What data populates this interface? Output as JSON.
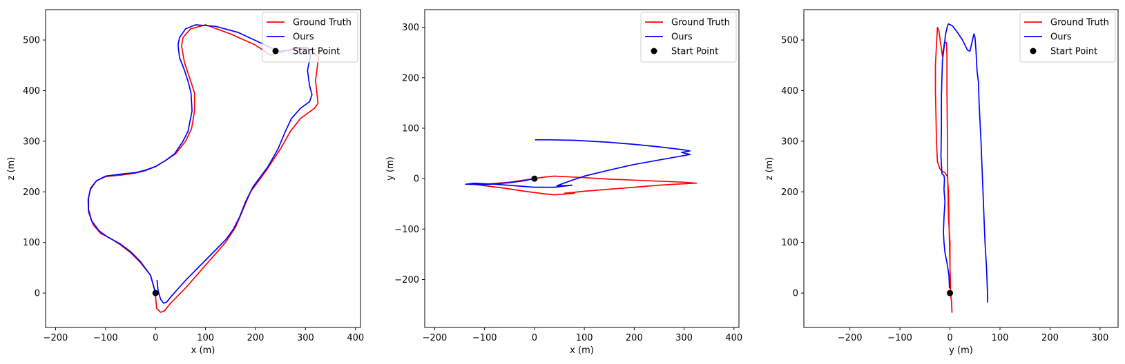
{
  "chart_data": [
    {
      "type": "line",
      "xlabel": "x (m)",
      "ylabel": "z (m)",
      "xlim": [
        -220,
        410
      ],
      "ylim": [
        -68,
        560
      ],
      "xticks": [
        -200,
        -100,
        0,
        100,
        200,
        300,
        400
      ],
      "yticks": [
        0,
        100,
        200,
        300,
        400,
        500
      ],
      "grid": false,
      "legend": {
        "placement": "top-right",
        "entries": [
          "Ground Truth",
          "Ours",
          "Start Point"
        ]
      },
      "series": [
        {
          "name": "Ground Truth",
          "color": "#ff0000",
          "points": [
            [
              0,
              -5
            ],
            [
              2,
              -30
            ],
            [
              10,
              -38
            ],
            [
              18,
              -35
            ],
            [
              30,
              -20
            ],
            [
              60,
              10
            ],
            [
              100,
              55
            ],
            [
              140,
              100
            ],
            [
              160,
              130
            ],
            [
              175,
              165
            ],
            [
              190,
              200
            ],
            [
              220,
              240
            ],
            [
              250,
              285
            ],
            [
              270,
              320
            ],
            [
              290,
              345
            ],
            [
              318,
              365
            ],
            [
              325,
              375
            ],
            [
              320,
              420
            ],
            [
              326,
              465
            ],
            [
              310,
              482
            ],
            [
              280,
              485
            ],
            [
              260,
              478
            ],
            [
              230,
              470
            ],
            [
              200,
              490
            ],
            [
              150,
              512
            ],
            [
              100,
              530
            ],
            [
              70,
              522
            ],
            [
              55,
              505
            ],
            [
              52,
              488
            ],
            [
              58,
              455
            ],
            [
              70,
              420
            ],
            [
              78,
              395
            ],
            [
              78,
              360
            ],
            [
              72,
              325
            ],
            [
              60,
              300
            ],
            [
              40,
              275
            ],
            [
              20,
              262
            ],
            [
              0,
              250
            ],
            [
              -20,
              242
            ],
            [
              -40,
              237
            ],
            [
              -70,
              233
            ],
            [
              -100,
              230
            ],
            [
              -118,
              222
            ],
            [
              -130,
              205
            ],
            [
              -135,
              185
            ],
            [
              -134,
              160
            ],
            [
              -125,
              135
            ],
            [
              -110,
              118
            ],
            [
              -90,
              108
            ],
            [
              -70,
              95
            ],
            [
              -50,
              80
            ],
            [
              -30,
              60
            ],
            [
              -10,
              35
            ],
            [
              0,
              0
            ]
          ]
        },
        {
          "name": "Ours",
          "color": "#0000ff",
          "points": [
            [
              3,
              25
            ],
            [
              5,
              5
            ],
            [
              10,
              -12
            ],
            [
              16,
              -20
            ],
            [
              22,
              -18
            ],
            [
              30,
              -8
            ],
            [
              60,
              25
            ],
            [
              100,
              65
            ],
            [
              140,
              105
            ],
            [
              155,
              125
            ],
            [
              168,
              150
            ],
            [
              180,
              180
            ],
            [
              195,
              210
            ],
            [
              225,
              250
            ],
            [
              245,
              285
            ],
            [
              260,
              320
            ],
            [
              272,
              345
            ],
            [
              290,
              365
            ],
            [
              308,
              378
            ],
            [
              313,
              392
            ],
            [
              308,
              410
            ],
            [
              304,
              440
            ],
            [
              310,
              470
            ],
            [
              305,
              485
            ],
            [
              288,
              485
            ],
            [
              270,
              480
            ],
            [
              245,
              478
            ],
            [
              215,
              492
            ],
            [
              165,
              515
            ],
            [
              120,
              527
            ],
            [
              80,
              530
            ],
            [
              60,
              522
            ],
            [
              48,
              505
            ],
            [
              45,
              490
            ],
            [
              48,
              465
            ],
            [
              58,
              440
            ],
            [
              66,
              415
            ],
            [
              71,
              395
            ],
            [
              73,
              360
            ],
            [
              65,
              320
            ],
            [
              55,
              300
            ],
            [
              38,
              275
            ],
            [
              20,
              262
            ],
            [
              0,
              250
            ],
            [
              -20,
              243
            ],
            [
              -40,
              238
            ],
            [
              -70,
              235
            ],
            [
              -100,
              231
            ],
            [
              -118,
              222
            ],
            [
              -130,
              207
            ],
            [
              -134,
              188
            ],
            [
              -134,
              165
            ],
            [
              -128,
              143
            ],
            [
              -113,
              123
            ],
            [
              -95,
              110
            ],
            [
              -72,
              98
            ],
            [
              -50,
              82
            ],
            [
              -30,
              62
            ],
            [
              -10,
              35
            ],
            [
              0,
              0
            ]
          ]
        },
        {
          "name": "Start Point",
          "color": "#000000",
          "marker": "dot",
          "points": [
            [
              0,
              0
            ]
          ]
        }
      ]
    },
    {
      "type": "line",
      "xlabel": "x (m)",
      "ylabel": "y (m)",
      "xlim": [
        -220,
        410
      ],
      "ylim": [
        -295,
        335
      ],
      "xticks": [
        -200,
        -100,
        0,
        100,
        200,
        300,
        400
      ],
      "yticks": [
        -200,
        -100,
        0,
        100,
        200,
        300
      ],
      "grid": false,
      "legend": {
        "placement": "top-right",
        "entries": [
          "Ground Truth",
          "Ours",
          "Start Point"
        ]
      },
      "series": [
        {
          "name": "Ground Truth",
          "color": "#ff0000",
          "points": [
            [
              0,
              0
            ],
            [
              20,
              3
            ],
            [
              40,
              5
            ],
            [
              60,
              4
            ],
            [
              100,
              2
            ],
            [
              150,
              -1
            ],
            [
              200,
              -3
            ],
            [
              250,
              -5
            ],
            [
              300,
              -7
            ],
            [
              325,
              -9
            ],
            [
              300,
              -10
            ],
            [
              250,
              -13
            ],
            [
              200,
              -17
            ],
            [
              150,
              -21
            ],
            [
              100,
              -25
            ],
            [
              60,
              -29
            ],
            [
              80,
              -29
            ],
            [
              40,
              -32
            ],
            [
              20,
              -30
            ],
            [
              -20,
              -25
            ],
            [
              -60,
              -19
            ],
            [
              -100,
              -14
            ],
            [
              -130,
              -10
            ],
            [
              -100,
              -11
            ],
            [
              -50,
              -7
            ],
            [
              0,
              0
            ]
          ]
        },
        {
          "name": "Ours",
          "color": "#0000ff",
          "points": [
            [
              2,
              77
            ],
            [
              30,
              77
            ],
            [
              80,
              76
            ],
            [
              150,
              72
            ],
            [
              200,
              68
            ],
            [
              250,
              63
            ],
            [
              300,
              57
            ],
            [
              312,
              55
            ],
            [
              295,
              52
            ],
            [
              312,
              48
            ],
            [
              290,
              44
            ],
            [
              250,
              37
            ],
            [
              200,
              28
            ],
            [
              150,
              17
            ],
            [
              100,
              5
            ],
            [
              70,
              -5
            ],
            [
              45,
              -14
            ],
            [
              60,
              -14
            ],
            [
              75,
              -13
            ],
            [
              40,
              -17
            ],
            [
              0,
              -17
            ],
            [
              -40,
              -14
            ],
            [
              -80,
              -11
            ],
            [
              -120,
              -9
            ],
            [
              -138,
              -11
            ],
            [
              -100,
              -12
            ],
            [
              -50,
              -8
            ],
            [
              -20,
              -4
            ],
            [
              0,
              0
            ]
          ]
        },
        {
          "name": "Start Point",
          "color": "#000000",
          "marker": "dot",
          "points": [
            [
              0,
              0
            ]
          ]
        }
      ]
    },
    {
      "type": "line",
      "xlabel": "y (m)",
      "ylabel": "z (m)",
      "xlim": [
        -292,
        336
      ],
      "ylim": [
        -68,
        560
      ],
      "xticks": [
        -200,
        -100,
        0,
        100,
        200,
        300
      ],
      "yticks": [
        0,
        100,
        200,
        300,
        400,
        500
      ],
      "grid": false,
      "legend": {
        "placement": "top-right",
        "entries": [
          "Ground Truth",
          "Ours",
          "Start Point"
        ]
      },
      "series": [
        {
          "name": "Ground Truth",
          "color": "#ff0000",
          "points": [
            [
              4,
              -38
            ],
            [
              3,
              -15
            ],
            [
              1,
              0
            ],
            [
              1,
              20
            ],
            [
              0,
              50
            ],
            [
              -1,
              100
            ],
            [
              -2,
              150
            ],
            [
              -3,
              200
            ],
            [
              -5,
              230
            ],
            [
              -10,
              238
            ],
            [
              -15,
              240
            ],
            [
              -20,
              245
            ],
            [
              -25,
              260
            ],
            [
              -27,
              300
            ],
            [
              -28,
              350
            ],
            [
              -29,
              400
            ],
            [
              -29,
              450
            ],
            [
              -27,
              490
            ],
            [
              -25,
              525
            ],
            [
              -22,
              518
            ],
            [
              -19,
              495
            ],
            [
              -15,
              468
            ],
            [
              -11,
              495
            ],
            [
              -7,
              495
            ],
            [
              -6,
              470
            ],
            [
              -6,
              400
            ],
            [
              -5,
              300
            ],
            [
              -5,
              250
            ],
            [
              -4,
              200
            ],
            [
              -3,
              150
            ],
            [
              0,
              100
            ],
            [
              0,
              50
            ],
            [
              1,
              0
            ]
          ]
        },
        {
          "name": "Ours",
          "color": "#0000ff",
          "points": [
            [
              -1,
              10
            ],
            [
              -2,
              35
            ],
            [
              -6,
              60
            ],
            [
              -10,
              80
            ],
            [
              -12,
              100
            ],
            [
              -13,
              120
            ],
            [
              -12,
              150
            ],
            [
              -10,
              180
            ],
            [
              -12,
              205
            ],
            [
              -11,
              225
            ],
            [
              -12,
              232
            ],
            [
              -16,
              236
            ],
            [
              -18,
              270
            ],
            [
              -17,
              330
            ],
            [
              -17,
              390
            ],
            [
              -16,
              430
            ],
            [
              -15,
              460
            ],
            [
              -11,
              492
            ],
            [
              -9,
              510
            ],
            [
              -5,
              528
            ],
            [
              -3,
              532
            ],
            [
              5,
              528
            ],
            [
              15,
              515
            ],
            [
              25,
              500
            ],
            [
              35,
              480
            ],
            [
              40,
              478
            ],
            [
              45,
              500
            ],
            [
              48,
              512
            ],
            [
              50,
              505
            ],
            [
              52,
              480
            ],
            [
              54,
              440
            ],
            [
              57,
              415
            ],
            [
              58,
              380
            ],
            [
              60,
              340
            ],
            [
              62,
              300
            ],
            [
              64,
              250
            ],
            [
              66,
              200
            ],
            [
              68,
              150
            ],
            [
              70,
              100
            ],
            [
              73,
              50
            ],
            [
              75,
              0
            ],
            [
              75,
              -18
            ]
          ]
        },
        {
          "name": "Start Point",
          "color": "#000000",
          "marker": "dot",
          "points": [
            [
              0,
              0
            ]
          ]
        }
      ]
    }
  ]
}
